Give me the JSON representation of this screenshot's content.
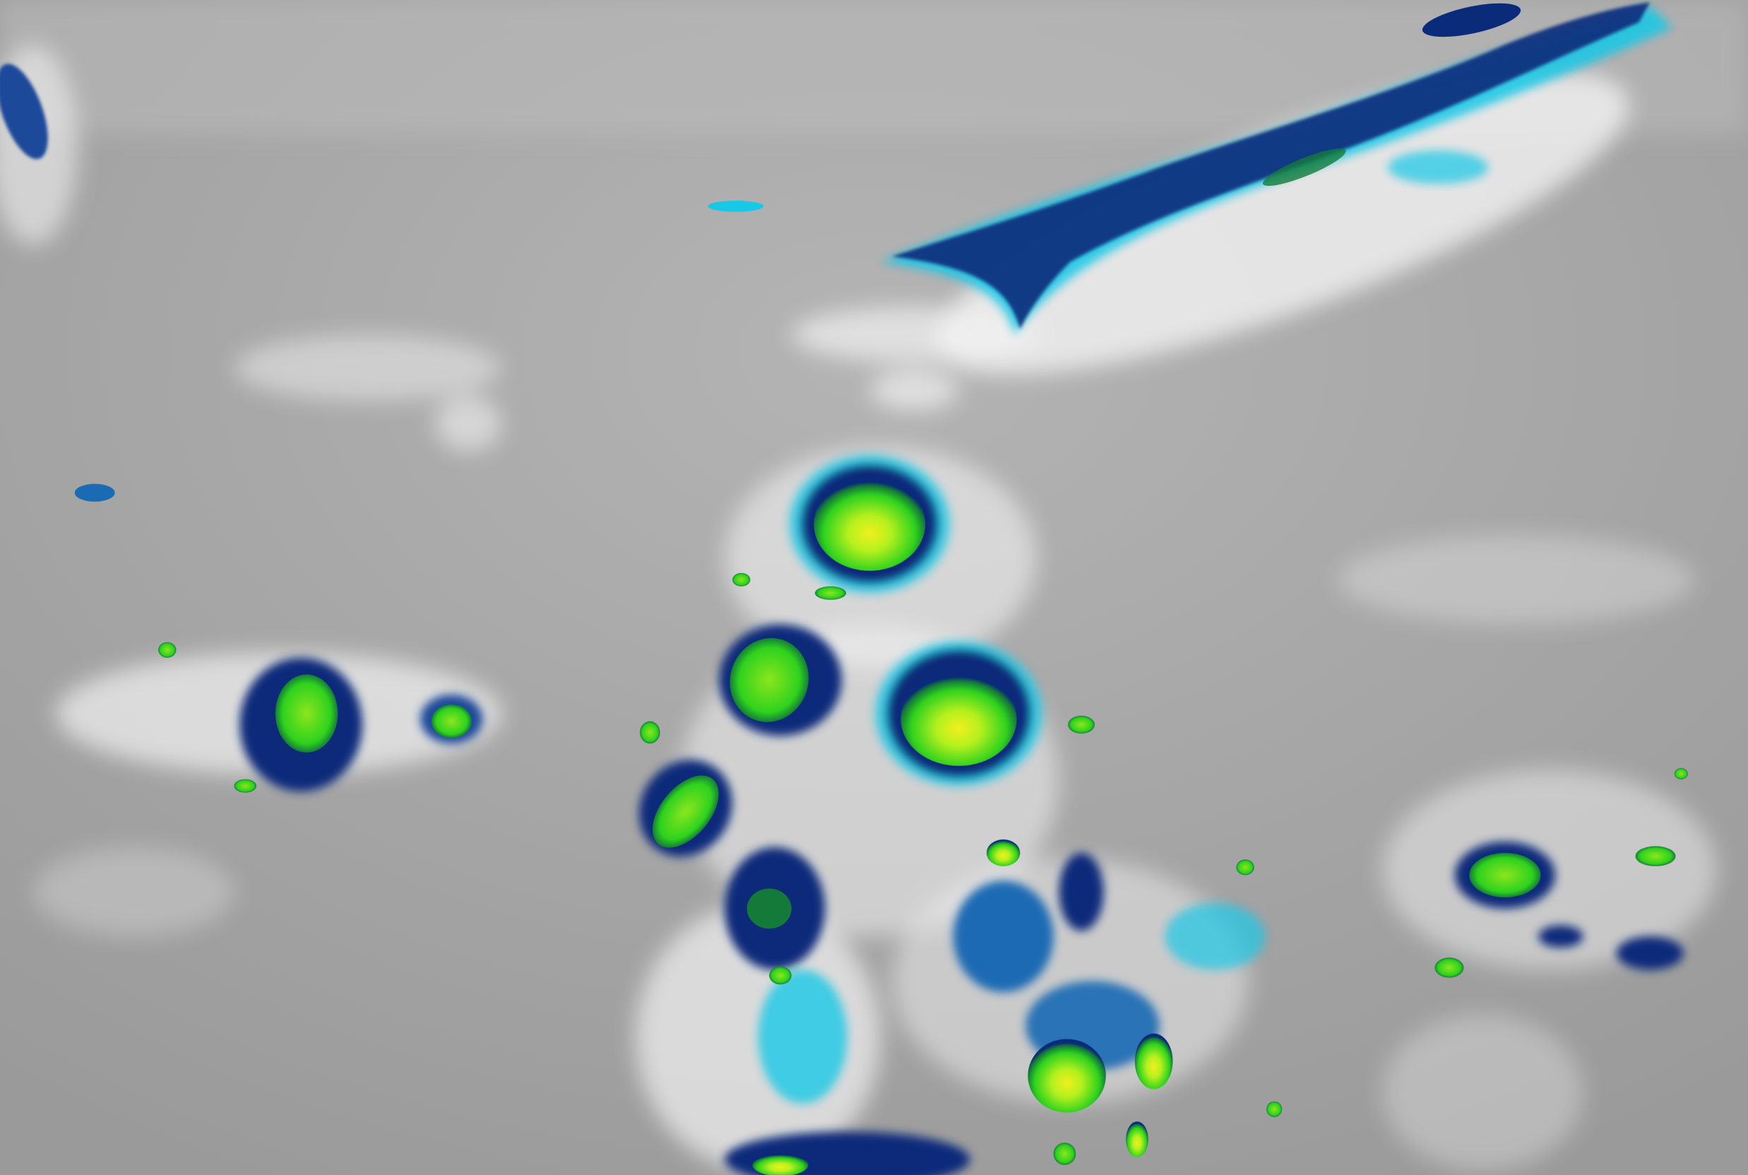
{
  "image": {
    "kind": "enhanced infrared satellite cloud imagery",
    "palette": {
      "background": "#a0a0a0",
      "cloud_white": "#f4f4f4",
      "cyan": "#19c8e6",
      "blue": "#1a6ab4",
      "dark_blue": "#0a2a7a",
      "green": "#2fd21e",
      "lime": "#b4f01e",
      "yellow": "#f0f01e"
    }
  }
}
